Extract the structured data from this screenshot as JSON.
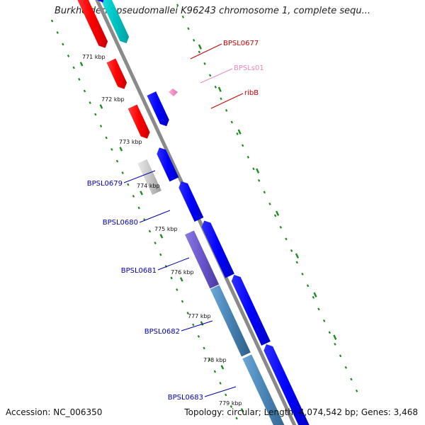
{
  "title": "Burkholderia pseudomallei K96243 chromosome 1, complete sequ...",
  "footer": {
    "accession": "Accession: NC_006350",
    "summary": "Topology: circular; Length: 4,074,542 bp; Genes: 3,468"
  },
  "colors": {
    "backbone": "#8a8a8a",
    "ticks": "#1e8a1e",
    "forward_label": "#cc0000",
    "rna_label": "#e58ac0",
    "reverse_label": "#0000aa"
  },
  "kbp_labels": [
    "771 kbp",
    "772 kbp",
    "773 kbp",
    "774 kbp",
    "775 kbp",
    "776 kbp",
    "777 kbp",
    "778 kbp",
    "779 kbp"
  ],
  "gene_labels": [
    {
      "name": "BPSL0677",
      "side": "right"
    },
    {
      "name": "BPSLs01",
      "side": "right"
    },
    {
      "name": "ribB",
      "side": "right"
    },
    {
      "name": "BPSL0679",
      "side": "left"
    },
    {
      "name": "BPSL0680",
      "side": "left"
    },
    {
      "name": "BPSL0681",
      "side": "left"
    },
    {
      "name": "BPSL0682",
      "side": "left"
    },
    {
      "name": "BPSL0683",
      "side": "left"
    }
  ]
}
